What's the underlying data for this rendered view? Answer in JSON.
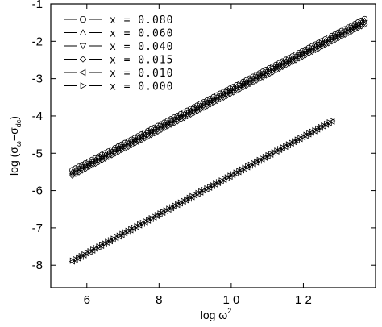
{
  "chart_data": {
    "type": "scatter",
    "xlabel_base": "log ω",
    "xlabel_sup": "2",
    "ylabel_prefix": "log (σ",
    "ylabel_sub1": "ω",
    "ylabel_minus": "−σ",
    "ylabel_sub2": "dc",
    "ylabel_suffix": ")",
    "xlim": [
      5,
      14
    ],
    "ylim": [
      -8.6,
      -1.0
    ],
    "xticks": [
      6,
      8,
      10,
      12
    ],
    "xtick_labels": [
      "6",
      "8",
      "1 0",
      "1 2"
    ],
    "yticks": [
      -1,
      -2,
      -3,
      -4,
      -5,
      -6,
      -7,
      -8
    ],
    "ytick_labels": [
      "-1",
      "-2",
      "-3",
      "-4",
      "-5",
      "-6",
      "-7",
      "-8"
    ],
    "grid": false,
    "legend_position": "top-left",
    "series": [
      {
        "name": "x = 0.080",
        "marker": "circle",
        "x_range": [
          5.6,
          13.7
        ],
        "y_start": -5.45,
        "y_end": -1.4
      },
      {
        "name": "x = 0.060",
        "marker": "triangle-up",
        "x_range": [
          5.6,
          13.7
        ],
        "y_start": -5.5,
        "y_end": -1.45
      },
      {
        "name": "x = 0.040",
        "marker": "triangle-down",
        "x_range": [
          5.6,
          13.7
        ],
        "y_start": -5.55,
        "y_end": -1.5
      },
      {
        "name": "x = 0.015",
        "marker": "diamond",
        "x_range": [
          5.6,
          13.7
        ],
        "y_start": -5.6,
        "y_end": -1.55
      },
      {
        "name": "x = 0.010",
        "marker": "triangle-left",
        "x_range": [
          5.6,
          12.8
        ],
        "y_start": -7.9,
        "y_end": -4.15
      },
      {
        "name": "x = 0.000",
        "marker": "triangle-right",
        "x_range": [
          5.6,
          12.8
        ],
        "y_start": -7.88,
        "y_end": -4.13
      }
    ]
  }
}
